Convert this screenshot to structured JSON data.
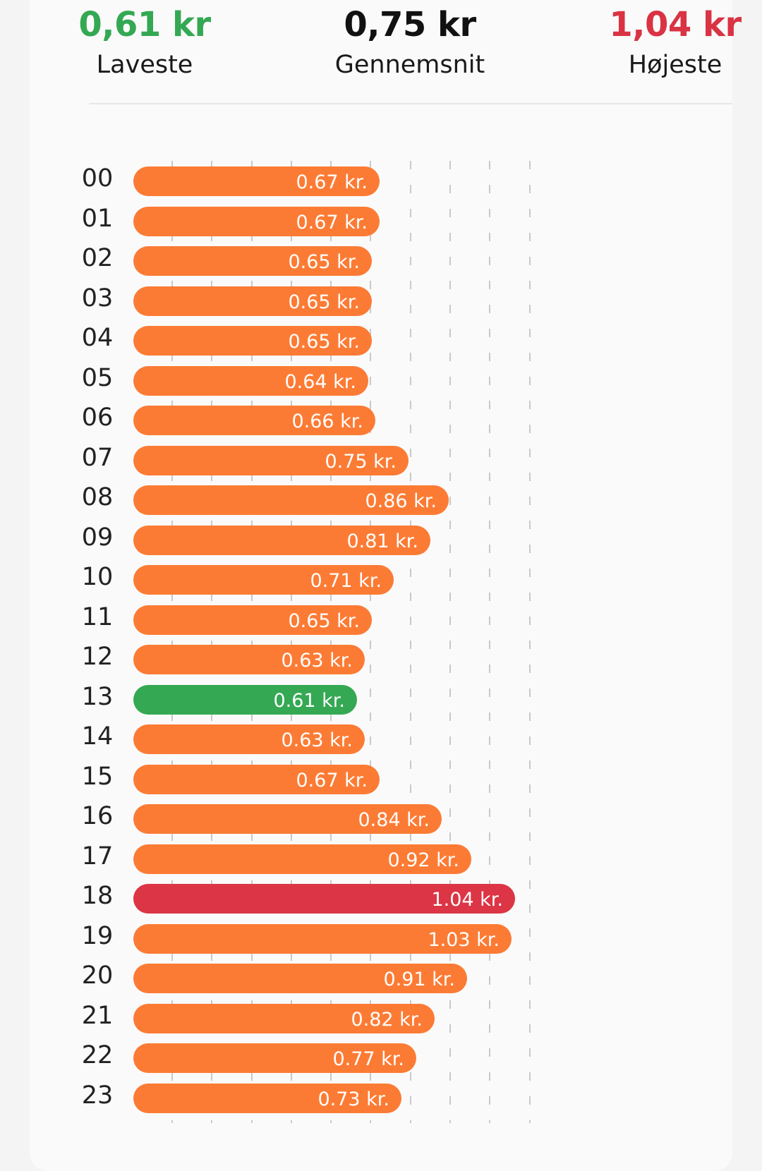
{
  "summary": {
    "lowest": {
      "value": "0,61 kr",
      "label": "Laveste",
      "color": "#34a853"
    },
    "average": {
      "value": "0,75 kr",
      "label": "Gennemsnit",
      "color": "#111111"
    },
    "highest": {
      "value": "1,04 kr",
      "label": "Højeste",
      "color": "#d93344"
    }
  },
  "colors": {
    "normal": "#fc7b34",
    "lowest": "#34a853",
    "highest": "#dc3545"
  },
  "chart_data": {
    "type": "bar",
    "orientation": "horizontal",
    "unit": "kr.",
    "categories": [
      "00",
      "01",
      "02",
      "03",
      "04",
      "05",
      "06",
      "07",
      "08",
      "09",
      "10",
      "11",
      "12",
      "13",
      "14",
      "15",
      "16",
      "17",
      "18",
      "19",
      "20",
      "21",
      "22",
      "23"
    ],
    "values": [
      0.67,
      0.67,
      0.65,
      0.65,
      0.65,
      0.64,
      0.66,
      0.75,
      0.86,
      0.81,
      0.71,
      0.65,
      0.63,
      0.61,
      0.63,
      0.67,
      0.84,
      0.92,
      1.04,
      1.03,
      0.91,
      0.82,
      0.77,
      0.73
    ],
    "labels": [
      "0.67 kr.",
      "0.67 kr.",
      "0.65 kr.",
      "0.65 kr.",
      "0.65 kr.",
      "0.64 kr.",
      "0.66 kr.",
      "0.75 kr.",
      "0.86 kr.",
      "0.81 kr.",
      "0.71 kr.",
      "0.65 kr.",
      "0.63 kr.",
      "0.61 kr.",
      "0.63 kr.",
      "0.67 kr.",
      "0.84 kr.",
      "0.92 kr.",
      "1.04 kr.",
      "1.03 kr.",
      "0.91 kr.",
      "0.82 kr.",
      "0.77 kr.",
      "0.73 kr."
    ],
    "grid": true,
    "xlim": [
      0,
      1.04
    ]
  }
}
